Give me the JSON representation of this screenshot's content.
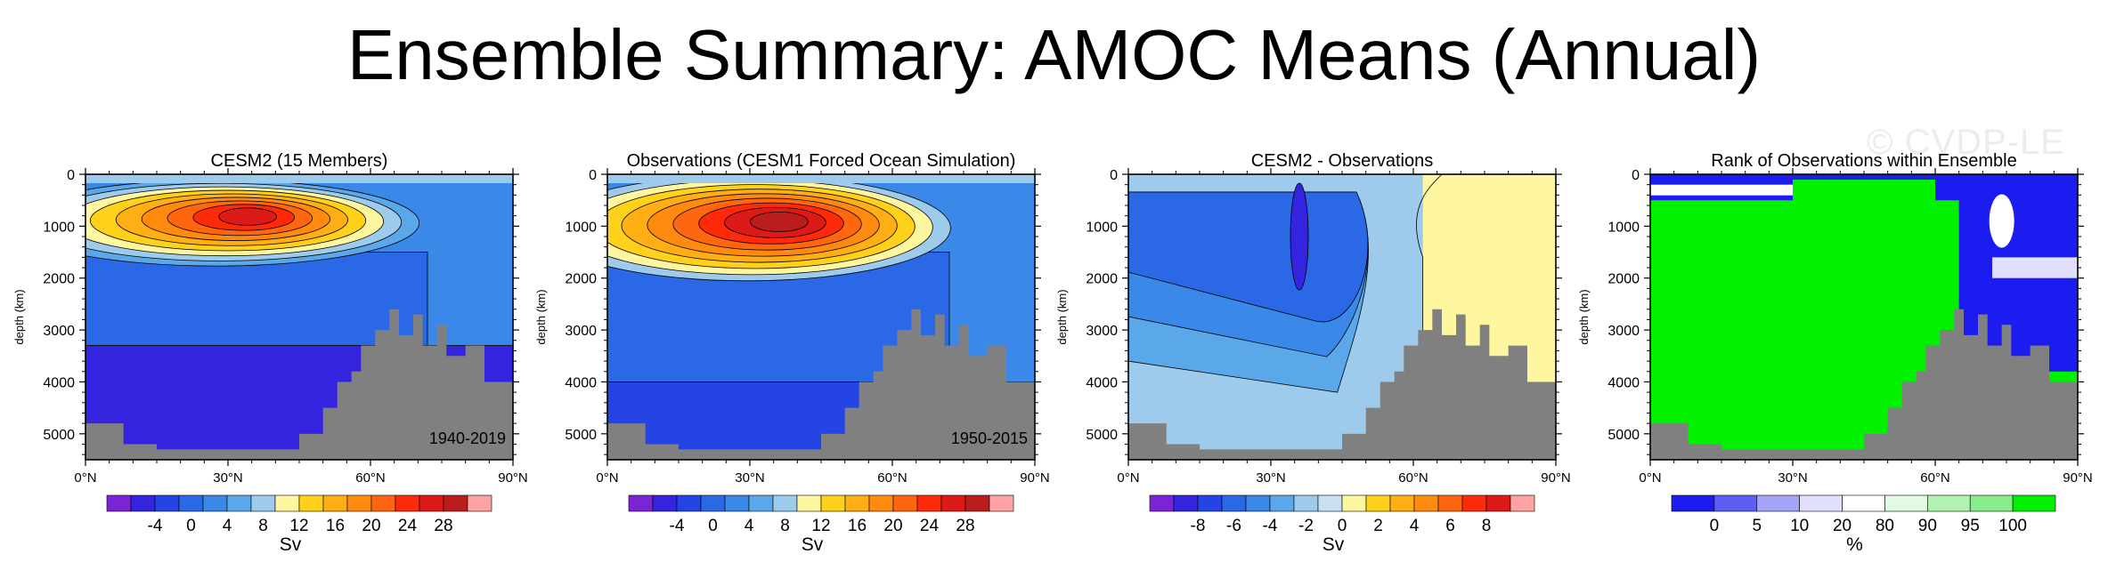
{
  "figure": {
    "title": "Ensemble Summary: AMOC Means (Annual)",
    "watermark": "© CVDP-LE"
  },
  "colors": {
    "land": "#808080",
    "amoc_palette": [
      "#7a24d6",
      "#3424e0",
      "#2444e6",
      "#2a68e6",
      "#3a88e8",
      "#5aa8ea",
      "#9ecaec",
      "#fff6a0",
      "#ffd11a",
      "#ffae14",
      "#ff8a10",
      "#ff6610",
      "#ff2a0a",
      "#dd1a18",
      "#bb1c1c",
      "#ffa2a2"
    ],
    "diff_palette": [
      "#7a24d6",
      "#3424e0",
      "#2444e6",
      "#2a68e6",
      "#3a88e8",
      "#5aa8ea",
      "#9ecaec",
      "#c8e0f2",
      "#fff6a0",
      "#ffd11a",
      "#ffae14",
      "#ff8a10",
      "#ff6610",
      "#ff2a0a",
      "#dd1a18",
      "#ffa2a2"
    ],
    "rank_palette": [
      "#1c1cf0",
      "#5e5ef4",
      "#a4a4f8",
      "#e0e0fc",
      "#ffffff",
      "#e2fae2",
      "#b0f2b0",
      "#88ec88",
      "#00f000"
    ]
  },
  "chart_data": [
    {
      "type": "heatmap",
      "title": "CESM2 (15 Members)",
      "ylabel": "depth (km)",
      "xlabel": "",
      "period_label": "1940-2019",
      "x_ticks": [
        "0°N",
        "30°N",
        "60°N",
        "90°N"
      ],
      "x_range": [
        0,
        90
      ],
      "y_ticks": [
        "0",
        "1000",
        "2000",
        "3000",
        "4000",
        "5000"
      ],
      "y_range": [
        0,
        5500
      ],
      "colorbar": {
        "unit": "Sv",
        "tick_labels": [
          "-4",
          "0",
          "4",
          "8",
          "12",
          "16",
          "20",
          "24",
          "28"
        ],
        "levels": 16,
        "palette": "amoc_palette"
      },
      "field": {
        "core_lat": 35,
        "core_depth": 800,
        "core_value": 22,
        "upper_cell_value": 14,
        "upper_cell_lat_range": [
          0,
          55
        ],
        "upper_cell_depth_range": [
          300,
          1500
        ],
        "deep_cell_value": -3,
        "deep_cell_depth_range": [
          3300,
          4200
        ]
      },
      "bathymetry": {
        "lat": [
          0,
          5,
          8,
          12,
          15,
          25,
          40,
          45,
          50,
          53,
          56,
          58,
          61,
          64,
          66,
          69,
          71,
          74,
          76,
          80,
          84,
          87,
          90
        ],
        "depth": [
          4800,
          4800,
          5200,
          5200,
          5300,
          5300,
          5300,
          5000,
          4500,
          4000,
          3800,
          3300,
          3000,
          2600,
          3100,
          2700,
          3300,
          2900,
          3500,
          3300,
          4000,
          4000,
          4000
        ]
      }
    },
    {
      "type": "heatmap",
      "title": "Observations (CESM1 Forced Ocean Simulation)",
      "ylabel": "depth (km)",
      "xlabel": "",
      "period_label": "1950-2015",
      "x_ticks": [
        "0°N",
        "30°N",
        "60°N",
        "90°N"
      ],
      "x_range": [
        0,
        90
      ],
      "y_ticks": [
        "0",
        "1000",
        "2000",
        "3000",
        "4000",
        "5000"
      ],
      "y_range": [
        0,
        5500
      ],
      "colorbar": {
        "unit": "Sv",
        "tick_labels": [
          "-4",
          "0",
          "4",
          "8",
          "12",
          "16",
          "20",
          "24",
          "28"
        ],
        "levels": 16,
        "palette": "amoc_palette"
      },
      "field": {
        "core_lat": 37,
        "core_depth": 900,
        "core_value": 28,
        "upper_cell_value": 16,
        "upper_cell_lat_range": [
          0,
          55
        ],
        "upper_cell_depth_range": [
          300,
          1800
        ],
        "deep_cell_value": -1,
        "deep_cell_depth_range": [
          4000,
          4800
        ]
      },
      "bathymetry": {
        "lat": [
          0,
          5,
          8,
          12,
          15,
          25,
          40,
          45,
          50,
          53,
          56,
          58,
          61,
          64,
          66,
          69,
          71,
          74,
          76,
          80,
          84,
          87,
          90
        ],
        "depth": [
          4800,
          4800,
          5200,
          5200,
          5300,
          5300,
          5300,
          5000,
          4500,
          4000,
          3800,
          3300,
          3000,
          2600,
          3100,
          2700,
          3300,
          2900,
          3500,
          3300,
          4000,
          4000,
          4000
        ]
      }
    },
    {
      "type": "heatmap",
      "title": "CESM2 - Observations",
      "ylabel": "depth (km)",
      "xlabel": "",
      "x_ticks": [
        "0°N",
        "30°N",
        "60°N",
        "90°N"
      ],
      "x_range": [
        0,
        90
      ],
      "y_ticks": [
        "0",
        "1000",
        "2000",
        "3000",
        "4000",
        "5000"
      ],
      "y_range": [
        0,
        5500
      ],
      "colorbar": {
        "unit": "Sv",
        "tick_labels": [
          "-8",
          "-6",
          "-4",
          "-2",
          "0",
          "2",
          "4",
          "6",
          "8"
        ],
        "levels": 16,
        "palette": "diff_palette"
      },
      "field": {
        "min_lat": 36,
        "min_depth": 1200,
        "min_value": -8,
        "broad_negative_value": -3,
        "positive_region_lat_range": [
          62,
          90
        ],
        "positive_region_value": 0.5
      },
      "bathymetry": {
        "lat": [
          0,
          5,
          8,
          12,
          15,
          25,
          40,
          45,
          50,
          53,
          56,
          58,
          61,
          64,
          66,
          69,
          71,
          74,
          76,
          80,
          84,
          87,
          90
        ],
        "depth": [
          4800,
          4800,
          5200,
          5200,
          5300,
          5300,
          5300,
          5000,
          4500,
          4000,
          3800,
          3300,
          3000,
          2600,
          3100,
          2700,
          3300,
          2900,
          3500,
          3300,
          4000,
          4000,
          4000
        ]
      }
    },
    {
      "type": "heatmap",
      "title": "Rank of Observations within Ensemble",
      "ylabel": "depth (km)",
      "xlabel": "",
      "x_ticks": [
        "0°N",
        "30°N",
        "60°N",
        "90°N"
      ],
      "x_range": [
        0,
        90
      ],
      "y_ticks": [
        "0",
        "1000",
        "2000",
        "3000",
        "4000",
        "5000"
      ],
      "y_range": [
        0,
        5500
      ],
      "colorbar": {
        "unit": "%",
        "tick_labels": [
          "0",
          "5",
          "10",
          "20",
          "80",
          "90",
          "95",
          "100"
        ],
        "levels": 9,
        "palette": "rank_palette"
      },
      "field": {
        "dominant_rank_percent": 100,
        "low_rank_surface_band_depth": [
          0,
          500
        ],
        "low_rank_lat_range": [
          65,
          90
        ]
      },
      "bathymetry": {
        "lat": [
          0,
          5,
          8,
          12,
          15,
          25,
          40,
          45,
          50,
          53,
          56,
          58,
          61,
          64,
          66,
          69,
          71,
          74,
          76,
          80,
          84,
          87,
          90
        ],
        "depth": [
          4800,
          4800,
          5200,
          5200,
          5300,
          5300,
          5300,
          5000,
          4500,
          4000,
          3800,
          3300,
          3000,
          2600,
          3100,
          2700,
          3300,
          2900,
          3500,
          3300,
          4000,
          4000,
          4000
        ]
      }
    }
  ]
}
